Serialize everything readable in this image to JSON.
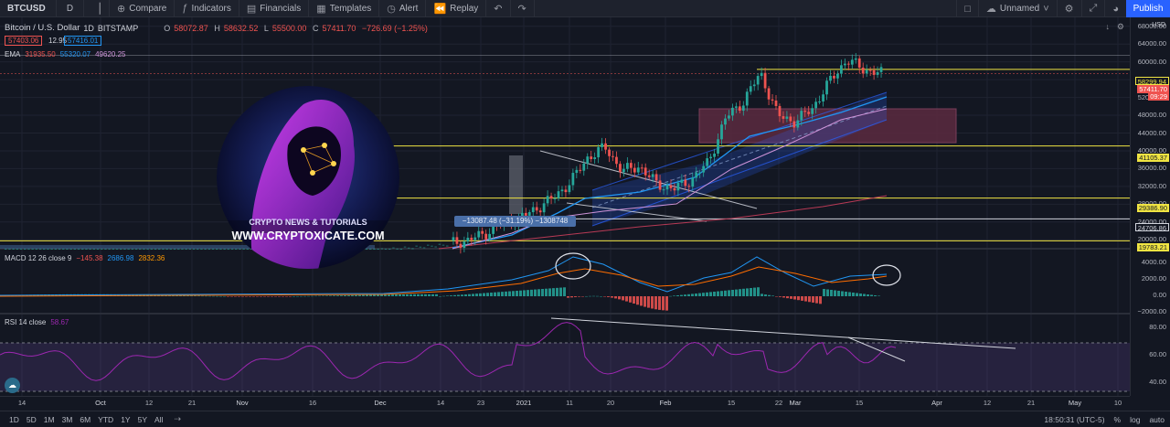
{
  "toolbar": {
    "symbol": "BTCUSD",
    "interval": "D",
    "compare": "Compare",
    "indicators": "Indicators",
    "financials": "Financials",
    "templates": "Templates",
    "alert": "Alert",
    "replay": "Replay",
    "layout_name": "Unnamed",
    "publish": "Publish"
  },
  "legend": {
    "title": "Bitcoin / U.S. Dollar",
    "interval": "1D",
    "exchange": "BITSTAMP",
    "o_label": "O",
    "o": "58072.87",
    "h_label": "H",
    "h": "58632.52",
    "l_label": "L",
    "l": "55500.00",
    "c_label": "C",
    "c": "57411.70",
    "change": "−726.69 (−1.25%)",
    "bid": "57403.06",
    "spread": "12.95",
    "ask": "57416.01",
    "ema_label": "EMA",
    "ema1": "31935.50",
    "ema2": "55320.07",
    "ema3": "49620.25",
    "macd_label": "MACD 12 26 close 9",
    "macd1": "−145.38",
    "macd2": "2686.98",
    "macd3": "2832.36",
    "rsi_label": "RSI 14 close",
    "rsi": "58.67"
  },
  "measure": "−13087.48 (−31.19%) −1308748",
  "logo": {
    "line1": "CRYPTO NEWS & TUTORIALS",
    "line2": "WWW.CRYPTOXICATE.COM"
  },
  "axis": {
    "unit": "USD",
    "price_ticks": [
      "68000.00",
      "64000.00",
      "60000.00",
      "56000.00",
      "52000.00",
      "48000.00",
      "44000.00",
      "40000.00",
      "36000.00",
      "32000.00",
      "28000.00",
      "24000.00",
      "20000.00"
    ],
    "price_tags": {
      "level1": "58299.94",
      "last": "57411.70",
      "countdown": "09:29",
      "level2": "41105.37",
      "level3": "29386.90",
      "level4": "24706.86",
      "level5": "19783.21"
    },
    "macd_ticks": [
      "4000.00",
      "2000.00",
      "0.00",
      "−2000.00"
    ],
    "rsi_ticks": [
      "80.00",
      "60.00",
      "40.00"
    ]
  },
  "time_axis": [
    "14",
    "Oct",
    "12",
    "21",
    "Nov",
    "16",
    "Dec",
    "14",
    "23",
    "2021",
    "11",
    "20",
    "Feb",
    "15",
    "22",
    "Mar",
    "15",
    "Apr",
    "12",
    "21",
    "May",
    "10"
  ],
  "bottom": {
    "ranges": [
      "1D",
      "5D",
      "1M",
      "3M",
      "6M",
      "YTD",
      "1Y",
      "5Y",
      "All"
    ],
    "clock": "18:50:31 (UTC-5)",
    "pct": "%",
    "log": "log",
    "auto": "auto"
  },
  "colors": {
    "up": "#26a69a",
    "down": "#ef5350",
    "level": "#f0e442",
    "macd": "#2196f3",
    "signal": "#ff6d00",
    "rsi": "#9c27b0",
    "accent": "#2962ff"
  },
  "chart_data": [
    {
      "type": "candlestick",
      "title": "Bitcoin / U.S. Dollar",
      "ylabel": "USD",
      "ylim": [
        18000,
        70000
      ],
      "x_ticks": [
        "Oct",
        "Nov",
        "Dec",
        "2021",
        "Feb",
        "Mar",
        "Apr",
        "May"
      ],
      "series": [
        {
          "name": "BTCUSD",
          "close": [
            19200,
            19800,
            21300,
            23500,
            24700,
            27000,
            29400,
            33000,
            38500,
            40800,
            35500,
            36500,
            32500,
            31500,
            33500,
            37500,
            47500,
            51000,
            57500,
            48000,
            46500,
            49500,
            55500,
            60500,
            58300,
            57411
          ]
        }
      ],
      "levels": [
        58299.94,
        41105.37,
        29386.9,
        24706.86,
        19783.21
      ]
    },
    {
      "type": "bar",
      "title": "MACD 12 26 close 9",
      "ylim": [
        -2000,
        5000
      ],
      "series": [
        {
          "name": "macd",
          "values": [
            -145.38
          ]
        },
        {
          "name": "signal",
          "values": [
            2686.98
          ]
        },
        {
          "name": "histogram",
          "values": [
            2832.36
          ]
        }
      ]
    },
    {
      "type": "line",
      "title": "RSI 14 close",
      "ylim": [
        30,
        90
      ],
      "series": [
        {
          "name": "RSI",
          "values": [
            58.67
          ]
        }
      ]
    }
  ]
}
